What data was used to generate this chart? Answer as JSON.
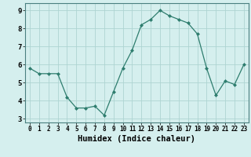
{
  "x": [
    0,
    1,
    2,
    3,
    4,
    5,
    6,
    7,
    8,
    9,
    10,
    11,
    12,
    13,
    14,
    15,
    16,
    17,
    18,
    19,
    20,
    21,
    22,
    23
  ],
  "y": [
    5.8,
    5.5,
    5.5,
    5.5,
    4.2,
    3.6,
    3.6,
    3.7,
    3.2,
    4.5,
    5.8,
    6.8,
    8.2,
    8.5,
    9.0,
    8.7,
    8.5,
    8.3,
    7.7,
    5.8,
    4.3,
    5.1,
    4.9,
    6.0
  ],
  "line_color": "#2e7d6e",
  "marker": "D",
  "marker_size": 2,
  "bg_color": "#d5efee",
  "grid_color": "#aed4d2",
  "xlabel": "Humidex (Indice chaleur)",
  "xlim": [
    -0.5,
    23.5
  ],
  "ylim": [
    2.8,
    9.4
  ],
  "yticks": [
    3,
    4,
    5,
    6,
    7,
    8,
    9
  ],
  "xticks": [
    0,
    1,
    2,
    3,
    4,
    5,
    6,
    7,
    8,
    9,
    10,
    11,
    12,
    13,
    14,
    15,
    16,
    17,
    18,
    19,
    20,
    21,
    22,
    23
  ],
  "xtick_fontsize": 5.5,
  "ytick_fontsize": 6.5,
  "xlabel_fontsize": 7.5
}
